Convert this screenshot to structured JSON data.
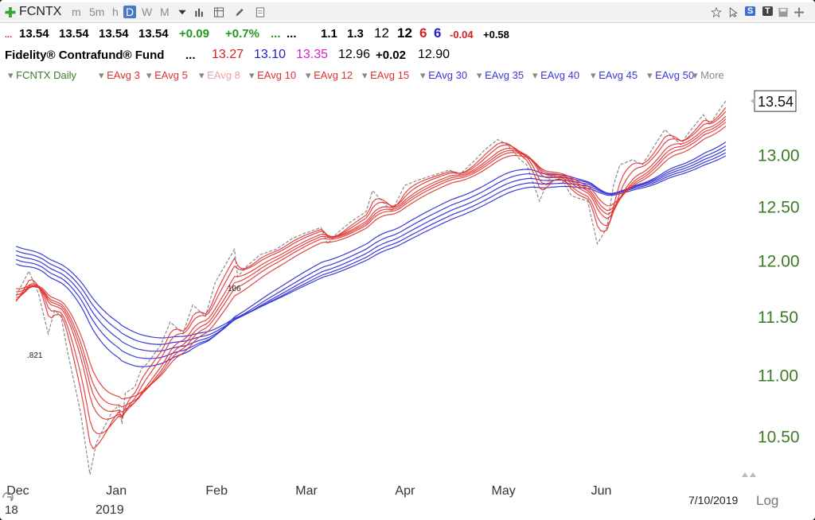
{
  "toolbar": {
    "add_icon": "plus-icon",
    "symbol": "FCNTX",
    "timeframes": [
      "m",
      "5m",
      "h",
      "D",
      "W",
      "M"
    ],
    "active_timeframe": "D",
    "right_icons": [
      "star-icon",
      "arrow-icon",
      "s-badge",
      "t-badge",
      "save-icon",
      "move-icon"
    ],
    "s_badge": "S",
    "t_badge": "T"
  },
  "quote": {
    "lead": "...",
    "last": "13.54",
    "open": "13.54",
    "high": "13.54",
    "low": "13.54",
    "change": "+0.09",
    "change_pct": "+0.7%",
    "dots1": "...",
    "dots2": "...",
    "v1": "1.1",
    "v2": "1.3",
    "v3": "12",
    "v4": "12",
    "v5": "6",
    "v6": "6",
    "v7": "-0.04",
    "v8": "+0.58"
  },
  "fund": {
    "name": "Fidelity® Contrafund® Fund",
    "dots": "...",
    "v1": "13.27",
    "v2": "13.10",
    "v3": "13.35",
    "v4": "12.96",
    "v5": "+0.02",
    "v6": "12.90"
  },
  "studies": {
    "items": [
      "FCNTX Daily",
      "EAvg 3",
      "EAvg 5",
      "EAvg 8",
      "EAvg 10",
      "EAvg 12",
      "EAvg 15",
      "EAvg 30",
      "EAvg 35",
      "EAvg 40",
      "EAvg 45",
      "EAvg 50"
    ],
    "more": "More"
  },
  "chart_data": {
    "type": "line",
    "y_axis": {
      "ticks": [
        "10.50",
        "11.00",
        "11.50",
        "12.00",
        "12.50",
        "13.00"
      ],
      "range": [
        10.18,
        13.68
      ],
      "scale": "log"
    },
    "x_axis": {
      "tick_labels": [
        "Dec",
        "Jan",
        "Feb",
        "Mar",
        "Apr",
        "May",
        "Jun"
      ],
      "year_label": "2019",
      "year_prefix": "18",
      "end_date": "7/10/2019"
    },
    "last_price_label": "13.54",
    "annotations": [
      ".821",
      "106"
    ],
    "scale_button": "Log",
    "close_series": [
      [
        "2018-12-01",
        11.68
      ],
      [
        "2018-12-05",
        11.9
      ],
      [
        "2018-12-08",
        11.7
      ],
      [
        "2018-12-11",
        11.35
      ],
      [
        "2018-12-13",
        11.55
      ],
      [
        "2018-12-15",
        11.5
      ],
      [
        "2018-12-17",
        11.2
      ],
      [
        "2018-12-19",
        10.95
      ],
      [
        "2018-12-21",
        10.7
      ],
      [
        "2018-12-24",
        10.2
      ],
      [
        "2018-12-26",
        10.45
      ],
      [
        "2018-12-28",
        10.55
      ],
      [
        "2018-12-31",
        10.7
      ],
      [
        "2019-01-02",
        10.75
      ],
      [
        "2019-01-03",
        10.6
      ],
      [
        "2019-01-04",
        10.85
      ],
      [
        "2019-01-07",
        10.9
      ],
      [
        "2019-01-09",
        11.05
      ],
      [
        "2019-01-11",
        11.1
      ],
      [
        "2019-01-15",
        11.25
      ],
      [
        "2019-01-18",
        11.45
      ],
      [
        "2019-01-22",
        11.35
      ],
      [
        "2019-01-25",
        11.6
      ],
      [
        "2019-01-29",
        11.5
      ],
      [
        "2019-02-01",
        11.8
      ],
      [
        "2019-02-04",
        11.95
      ],
      [
        "2019-02-07",
        12.1
      ],
      [
        "2019-02-08",
        11.85
      ],
      [
        "2019-02-11",
        11.95
      ],
      [
        "2019-02-15",
        12.05
      ],
      [
        "2019-02-20",
        12.1
      ],
      [
        "2019-02-25",
        12.2
      ],
      [
        "2019-03-01",
        12.25
      ],
      [
        "2019-03-06",
        12.3
      ],
      [
        "2019-03-08",
        12.15
      ],
      [
        "2019-03-11",
        12.25
      ],
      [
        "2019-03-15",
        12.35
      ],
      [
        "2019-03-20",
        12.45
      ],
      [
        "2019-03-22",
        12.65
      ],
      [
        "2019-03-25",
        12.55
      ],
      [
        "2019-03-28",
        12.45
      ],
      [
        "2019-04-01",
        12.7
      ],
      [
        "2019-04-05",
        12.75
      ],
      [
        "2019-04-10",
        12.8
      ],
      [
        "2019-04-15",
        12.85
      ],
      [
        "2019-04-18",
        12.8
      ],
      [
        "2019-04-23",
        12.95
      ],
      [
        "2019-04-26",
        13.05
      ],
      [
        "2019-04-30",
        13.15
      ],
      [
        "2019-05-03",
        13.1
      ],
      [
        "2019-05-07",
        12.95
      ],
      [
        "2019-05-09",
        12.9
      ],
      [
        "2019-05-13",
        12.55
      ],
      [
        "2019-05-15",
        12.7
      ],
      [
        "2019-05-17",
        12.8
      ],
      [
        "2019-05-20",
        12.75
      ],
      [
        "2019-05-23",
        12.6
      ],
      [
        "2019-05-28",
        12.55
      ],
      [
        "2019-05-31",
        12.15
      ],
      [
        "2019-06-03",
        12.3
      ],
      [
        "2019-06-05",
        12.7
      ],
      [
        "2019-06-07",
        12.9
      ],
      [
        "2019-06-11",
        12.95
      ],
      [
        "2019-06-14",
        12.9
      ],
      [
        "2019-06-18",
        13.1
      ],
      [
        "2019-06-21",
        13.25
      ],
      [
        "2019-06-26",
        13.1
      ],
      [
        "2019-06-28",
        13.2
      ],
      [
        "2019-07-03",
        13.4
      ],
      [
        "2019-07-05",
        13.3
      ],
      [
        "2019-07-08",
        13.45
      ],
      [
        "2019-07-10",
        13.54
      ]
    ],
    "short_ema_periods": [
      3,
      5,
      8,
      10,
      12,
      15
    ],
    "long_ema_periods": [
      30,
      35,
      40,
      45,
      50
    ],
    "colors": {
      "close": "#8a8a8a",
      "short": "#e0312f",
      "long": "#3a3ad6",
      "axis_text": "#3d7a26",
      "x_text": "#333333",
      "green": "#1f9a1f",
      "blue": "#1f1fc8",
      "magenta": "#d81fc8",
      "red": "#d42020"
    }
  }
}
